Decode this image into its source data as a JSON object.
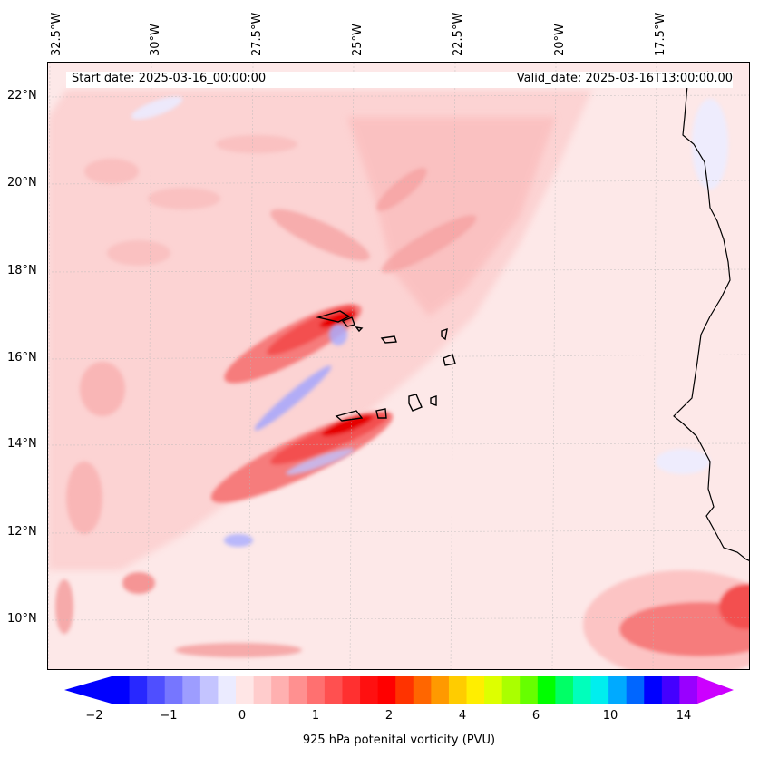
{
  "lon_labels": [
    "32.5°W",
    "30°W",
    "27.5°W",
    "25°W",
    "22.5°W",
    "20°W",
    "17.5°W"
  ],
  "lat_labels": [
    "22°N",
    "20°N",
    "18°N",
    "16°N",
    "14°N",
    "12°N",
    "10°N"
  ],
  "start_date": "Start date: 2025-03-16_00:00:00",
  "valid_date": "Valid_date: 2025-03-16T13:00:00.00",
  "colorbar": {
    "ticks": [
      "−2",
      "−1",
      "0",
      "1",
      "2",
      "4",
      "6",
      "10",
      "14"
    ],
    "label": "925 hPa potenital vorticity (PVU)",
    "colors": [
      "#0000ff",
      "#2828ff",
      "#4f4fff",
      "#7676ff",
      "#9d9dff",
      "#c4c4ff",
      "#ebebff",
      "#ffe6e6",
      "#ffcccc",
      "#ffb0b0",
      "#ff9090",
      "#ff7070",
      "#ff5050",
      "#ff3030",
      "#ff1010",
      "#ff0000",
      "#ff3300",
      "#ff6600",
      "#ff9900",
      "#ffcc00",
      "#ffee00",
      "#ddff00",
      "#aaff00",
      "#66ff00",
      "#00ff00",
      "#00ff66",
      "#00ffbb",
      "#00eeee",
      "#00aaff",
      "#0066ff",
      "#0000ff",
      "#4400ff",
      "#9900ff"
    ],
    "under_color": "#0000ff",
    "over_color": "#cc00ff"
  }
}
